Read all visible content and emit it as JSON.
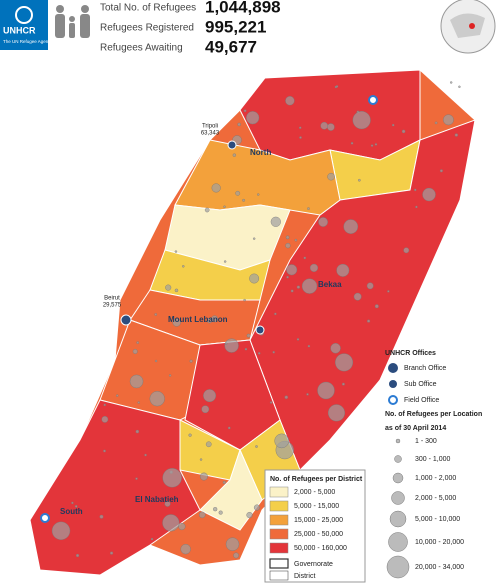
{
  "header": {
    "logo": {
      "name": "UNHCR",
      "tagline": "The UN Refugee Agency"
    },
    "stats": [
      {
        "label": "Total No. of Refugees",
        "value": "1,044,898"
      },
      {
        "label": "Refugees Registered",
        "value": "995,221"
      },
      {
        "label": "Refugees Awaiting",
        "value": "49,677"
      }
    ]
  },
  "map": {
    "places": [
      {
        "name": "Tripoli",
        "value": "63,343"
      },
      {
        "name": "Beirut",
        "value": "29,575"
      }
    ],
    "regions": [
      "North",
      "Mount Lebanon",
      "Bekaa",
      "South",
      "El Nabatieh"
    ]
  },
  "legend_district": {
    "title": "No. of Refugees per District",
    "classes": [
      {
        "label": "2,000 - 5,000",
        "color": "#fbf2c8"
      },
      {
        "label": "5,000 - 15,000",
        "color": "#f4cf4a"
      },
      {
        "label": "15,000 - 25,000",
        "color": "#f3a13b"
      },
      {
        "label": "25,000 - 50,000",
        "color": "#ef6a3a"
      },
      {
        "label": "50,000 - 160,000",
        "color": "#e3353a"
      }
    ],
    "boundaries": [
      "Governorate",
      "District"
    ]
  },
  "legend_offices": {
    "title": "UNHCR Offices",
    "items": [
      "Branch Office",
      "Sub Office",
      "Field Office"
    ]
  },
  "legend_location": {
    "title": "No. of Refugees per Location",
    "subtitle": "as of 30 April 2014",
    "items": [
      "1 - 300",
      "300 - 1,000",
      "1,000 - 2,000",
      "2,000 - 5,000",
      "5,000 - 10,000",
      "10,000 - 20,000",
      "20,000 - 34,000"
    ]
  }
}
